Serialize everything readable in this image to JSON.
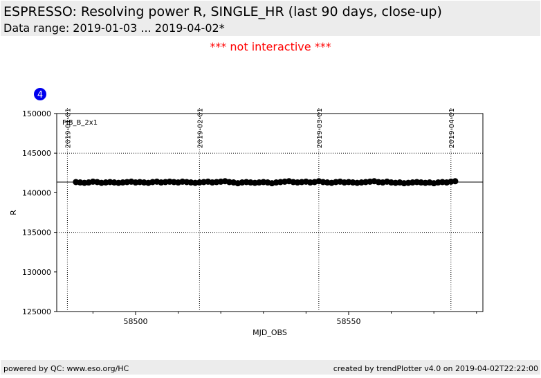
{
  "header": {
    "title": "ESPRESSO: Resolving power R, SINGLE_HR (last 90 days, close-up)",
    "subtitle": "Data range: 2019-01-03 ... 2019-04-02*"
  },
  "notice": "*** not interactive ***",
  "badge": "4",
  "chart_data": {
    "type": "scatter",
    "annotation": "FIB_B_2x1",
    "x_label": "MJD_OBS",
    "y_label": "R",
    "xlim": [
      58481.5,
      58581.5
    ],
    "ylim": [
      125000,
      150000
    ],
    "xticks": [
      58500,
      58550
    ],
    "xminorticks": [
      58490,
      58510,
      58520,
      58530,
      58540,
      58560,
      58570,
      58580
    ],
    "yticks": [
      125000,
      130000,
      135000,
      140000,
      145000,
      150000
    ],
    "grid_y": [
      135000,
      145000
    ],
    "reference_line": 141350,
    "date_markers": [
      {
        "value": 58484,
        "label": "2019-01-01"
      },
      {
        "value": 58515,
        "label": "2019-02-01"
      },
      {
        "value": 58543,
        "label": "2019-03-01"
      },
      {
        "value": 58574,
        "label": "2019-04-01"
      }
    ],
    "color": "#000000",
    "x": [
      58486,
      58487,
      58488,
      58489,
      58490,
      58491,
      58492,
      58493,
      58494,
      58495,
      58496,
      58497,
      58498,
      58499,
      58500,
      58501,
      58502,
      58503,
      58504,
      58505,
      58506,
      58507,
      58508,
      58509,
      58510,
      58511,
      58512,
      58513,
      58514,
      58515,
      58516,
      58517,
      58518,
      58519,
      58520,
      58521,
      58522,
      58523,
      58524,
      58525,
      58526,
      58527,
      58528,
      58529,
      58530,
      58531,
      58532,
      58533,
      58534,
      58535,
      58536,
      58537,
      58538,
      58539,
      58540,
      58541,
      58542,
      58543,
      58544,
      58545,
      58546,
      58547,
      58548,
      58549,
      58550,
      58551,
      58552,
      58553,
      58554,
      58555,
      58556,
      58557,
      58558,
      58559,
      58560,
      58561,
      58562,
      58563,
      58564,
      58565,
      58566,
      58567,
      58568,
      58569,
      58570,
      58571,
      58572,
      58573,
      58574,
      58575
    ],
    "values": [
      141350,
      141300,
      141250,
      141300,
      141400,
      141350,
      141250,
      141300,
      141350,
      141300,
      141250,
      141300,
      141350,
      141400,
      141300,
      141350,
      141300,
      141250,
      141350,
      141400,
      141300,
      141350,
      141400,
      141350,
      141300,
      141400,
      141350,
      141300,
      141250,
      141300,
      141350,
      141400,
      141300,
      141350,
      141400,
      141450,
      141350,
      141300,
      141200,
      141300,
      141350,
      141300,
      141250,
      141300,
      141350,
      141300,
      141200,
      141300,
      141350,
      141400,
      141450,
      141350,
      141300,
      141350,
      141400,
      141300,
      141350,
      141450,
      141350,
      141300,
      141250,
      141350,
      141400,
      141300,
      141350,
      141300,
      141250,
      141300,
      141350,
      141400,
      141450,
      141350,
      141300,
      141400,
      141300,
      141250,
      141300,
      141200,
      141250,
      141300,
      141350,
      141300,
      141250,
      141300,
      141200,
      141300,
      141350,
      141300,
      141400,
      141450
    ]
  },
  "footer": {
    "left": "powered by QC: www.eso.org/HC",
    "right": "created by trendPlotter v4.0 on 2019-04-02T22:22:00"
  }
}
